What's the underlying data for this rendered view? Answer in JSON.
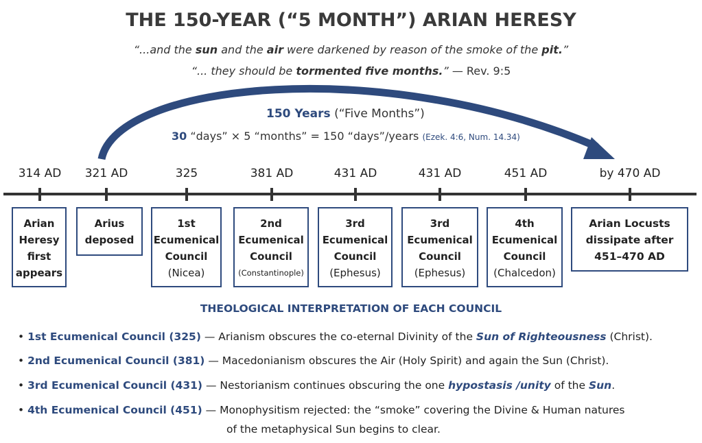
{
  "title": "THE 150-YEAR (“5 MONTH”) ARIAN HERESY",
  "quotes": [
    [
      "“...and the ",
      "sun",
      " and the ",
      "air",
      " were darkened by reason of the smoke of the ",
      "pit.",
      "”"
    ],
    [
      "“... they should be ",
      "tormented five months.",
      "”",
      " — Rev. 9:5"
    ]
  ],
  "arc": {
    "label": "150 Years",
    "label_note": " (“Five Months”)",
    "formula": [
      "30",
      " “days” × 5 “months” = 150 “days”/years",
      "(Ezek. 4:6, Num. 14.34)"
    ]
  },
  "timeline": [
    {
      "date": "314 AD",
      "box": [
        "Arian",
        "Heresy",
        "first",
        "appears"
      ]
    },
    {
      "date": "321 AD",
      "box": [
        "Arius",
        "deposed"
      ]
    },
    {
      "date": "325",
      "box": [
        "1st",
        "Ecumenical",
        "Council",
        "(Nicea)"
      ]
    },
    {
      "date": "381 AD",
      "box": [
        "2nd",
        "Ecumenical",
        "Council",
        "(Constantinople)"
      ]
    },
    {
      "date": "431 AD",
      "box": [
        "3rd",
        "Ecumenical",
        "Council",
        "(Ephesus)"
      ]
    },
    {
      "date": "431 AD",
      "box": [
        "3rd",
        "Ecumenical",
        "Council",
        "(Ephesus)"
      ]
    },
    {
      "date": "451 AD",
      "box": [
        "4th",
        "Ecumenical",
        "Council",
        "(Chalcedon)"
      ]
    },
    {
      "date": "by 470 AD",
      "box": [
        "Arian Locusts",
        "dissipate after",
        "451–470 AD"
      ]
    }
  ],
  "section_heading": "THEOLOGICAL INTERPRETATION OF EACH COUNCIL",
  "bullets": [
    {
      "label": "1st Ecumenical Council (325)",
      "text": [
        " — Arianism obscures the co-eternal Divinity of the ",
        "Sun of Righteousness",
        " (Christ)."
      ]
    },
    {
      "label": "2nd Ecumenical Council (381)",
      "text": [
        " — Macedonianism obscures the Air (Holy Spirit) and again the Sun (Christ)."
      ]
    },
    {
      "label": "3rd Ecumenical Council (431)",
      "text": [
        " — Nestorianism continues obscuring the one ",
        "hypostasis /unity",
        " of the ",
        "Sun",
        "."
      ]
    },
    {
      "label": "4th Ecumenical Council (451)",
      "text": [
        " — Monophysitism rejected: the “smoke” covering the Divine & Human natures",
        "of the metaphysical Sun begins to clear."
      ]
    }
  ]
}
